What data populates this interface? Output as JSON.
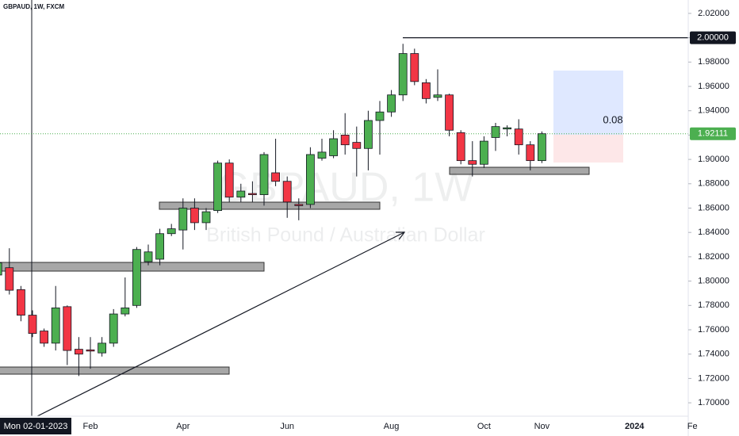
{
  "chart_data": {
    "type": "candlestick",
    "title": "GBPAUD, 1W, FXCM",
    "watermark": "GBPAUD, 1W",
    "subtitle": "British Pound / Australian Dollar",
    "categories": [
      null,
      null,
      null,
      null,
      null,
      null,
      null,
      null,
      "Feb",
      null,
      null,
      null,
      null,
      null,
      null,
      null,
      "Apr",
      null,
      null,
      null,
      null,
      null,
      null,
      null,
      null,
      "Jun",
      null,
      null,
      null,
      null,
      null,
      null,
      null,
      null,
      "Aug",
      null,
      null,
      null,
      null,
      null,
      null,
      null,
      "Oct",
      null,
      null,
      null,
      null,
      "Nov",
      null,
      null,
      null,
      null,
      null,
      null,
      null,
      "2024",
      null,
      null,
      null,
      null,
      "Fe"
    ],
    "open": [
      1.805,
      1.811,
      1.793,
      1.772,
      1.759,
      1.749,
      1.779,
      1.744,
      1.7435,
      1.741,
      1.749,
      1.773,
      1.78,
      1.816,
      1.818,
      1.839,
      1.842,
      1.86,
      1.848,
      1.858,
      1.897,
      1.869,
      1.872,
      1.871,
      1.889,
      1.882,
      1.863,
      1.863,
      1.901,
      1.903,
      1.92,
      1.914,
      1.909,
      1.932,
      1.939,
      1.953,
      1.987,
      1.963,
      1.951,
      1.953,
      1.922,
      1.899,
      1.896,
      1.918,
      1.925,
      1.925,
      1.912,
      1.899,
      null,
      null,
      null,
      null,
      null,
      null,
      null,
      null,
      null,
      null,
      null,
      null,
      null
    ],
    "high": [
      1.82,
      1.827,
      1.796,
      1.776,
      1.761,
      1.796,
      1.78,
      1.754,
      1.754,
      1.754,
      1.777,
      1.803,
      1.828,
      1.83,
      1.843,
      1.847,
      1.868,
      1.868,
      1.86,
      1.899,
      1.9,
      1.88,
      1.882,
      1.906,
      1.917,
      1.886,
      1.868,
      1.91,
      1.917,
      1.924,
      1.938,
      1.927,
      1.94,
      1.948,
      1.957,
      1.995,
      1.991,
      1.966,
      1.974,
      1.954,
      1.924,
      1.915,
      1.919,
      1.93,
      1.928,
      1.933,
      1.915,
      1.923,
      null,
      null,
      null,
      null,
      null,
      null,
      null,
      null,
      null,
      null,
      null,
      null,
      null
    ],
    "low": [
      1.8,
      1.789,
      1.767,
      1.754,
      1.746,
      1.743,
      1.731,
      1.722,
      1.728,
      1.738,
      1.746,
      1.771,
      1.778,
      1.813,
      1.813,
      1.837,
      1.826,
      1.842,
      1.842,
      1.856,
      1.865,
      1.865,
      1.865,
      1.862,
      1.878,
      1.852,
      1.85,
      1.86,
      1.899,
      1.901,
      1.904,
      1.886,
      1.891,
      1.904,
      1.935,
      1.948,
      1.961,
      1.946,
      1.948,
      1.919,
      1.896,
      1.886,
      1.893,
      1.907,
      1.919,
      1.904,
      1.891,
      1.897,
      null,
      null,
      null,
      null,
      null,
      null,
      null,
      null,
      null,
      null,
      null,
      null,
      null
    ],
    "close": [
      1.815,
      1.7925,
      1.772,
      1.757,
      1.749,
      1.778,
      1.743,
      1.74,
      1.7425,
      1.749,
      1.773,
      1.778,
      1.826,
      1.824,
      1.839,
      1.843,
      1.86,
      1.848,
      1.857,
      1.897,
      1.869,
      1.874,
      1.871,
      1.904,
      1.882,
      1.865,
      1.862,
      1.904,
      1.906,
      1.917,
      1.912,
      1.909,
      1.932,
      1.939,
      1.953,
      1.987,
      1.964,
      1.95,
      1.953,
      1.924,
      1.899,
      1.896,
      1.915,
      1.927,
      1.926,
      1.912,
      1.899,
      1.92111,
      null,
      null,
      null,
      null,
      null,
      null,
      null,
      null,
      null,
      null,
      null,
      null,
      null
    ],
    "up_color": "#4caf50",
    "down_color": "#f23645",
    "ylim": [
      1.689,
      2.031
    ],
    "yticks": [
      {
        "value": 1.7,
        "label": "1.70000"
      },
      {
        "value": 1.72,
        "label": "1.72000"
      },
      {
        "value": 1.74,
        "label": "1.74000"
      },
      {
        "value": 1.76,
        "label": "1.76000"
      },
      {
        "value": 1.78,
        "label": "1.78000"
      },
      {
        "value": 1.8,
        "label": "1.80000"
      },
      {
        "value": 1.82,
        "label": "1.82000"
      },
      {
        "value": 1.84,
        "label": "1.84000"
      },
      {
        "value": 1.86,
        "label": "1.86000"
      },
      {
        "value": 1.88,
        "label": "1.88000"
      },
      {
        "value": 1.9,
        "label": "1.90000"
      },
      {
        "value": 1.92,
        "label": "1.92000"
      },
      {
        "value": 1.94,
        "label": "1.94000"
      },
      {
        "value": 1.96,
        "label": "1.96000"
      },
      {
        "value": 1.98,
        "label": "1.98000"
      },
      {
        "value": 2.0,
        "label": "2.00000"
      },
      {
        "value": 2.02,
        "label": "2.02000"
      }
    ],
    "crosshair_label": "Mon 02-01-2023",
    "horizontal_line": {
      "value": 2.0,
      "label": "2.00000"
    },
    "last_price": {
      "value": 1.92111,
      "label": "1.92111"
    },
    "annotation": "0.08"
  }
}
